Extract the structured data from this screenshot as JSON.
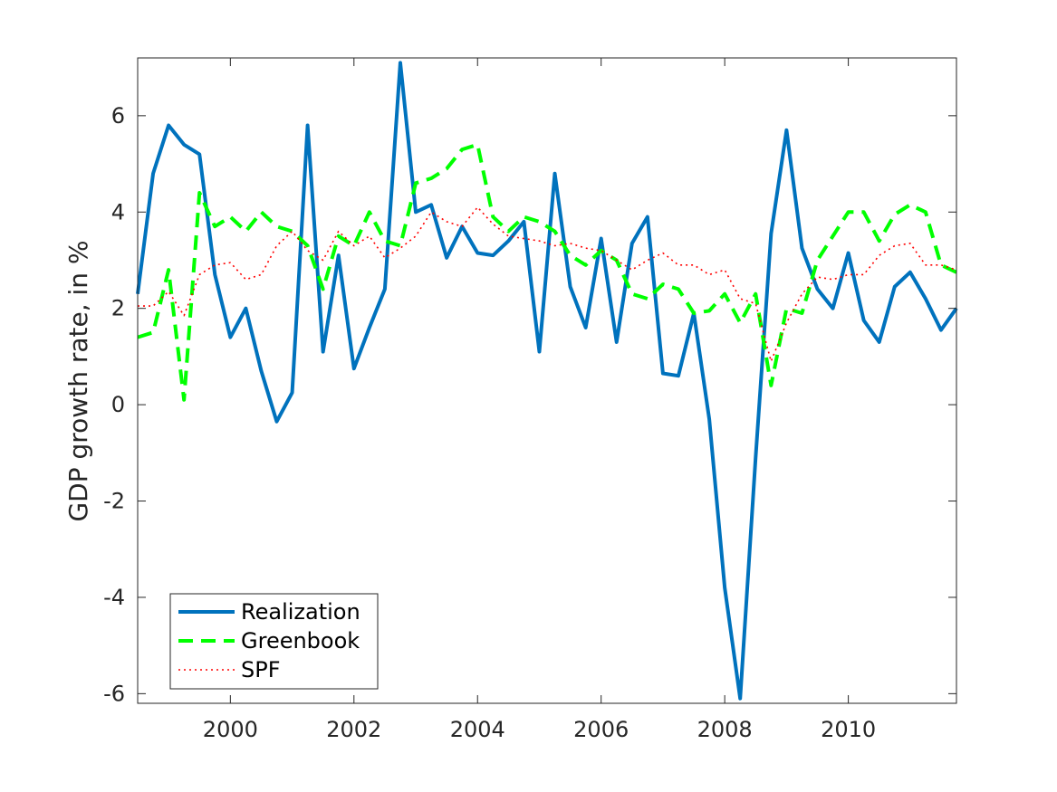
{
  "chart_data": {
    "type": "line",
    "title": "",
    "xlabel": "",
    "ylabel": "GDP growth rate, in %",
    "xlim": [
      1998.5,
      2011.75
    ],
    "ylim": [
      -6.2,
      7.2
    ],
    "xticks": [
      2000,
      2002,
      2004,
      2006,
      2008,
      2010
    ],
    "xtick_labels": [
      "2000",
      "2002",
      "2004",
      "2006",
      "2008",
      "2010"
    ],
    "yticks": [
      -6,
      -4,
      -2,
      0,
      2,
      4,
      6
    ],
    "ytick_labels": [
      "-6",
      "-4",
      "-2",
      "0",
      "2",
      "4",
      "6"
    ],
    "grid": false,
    "legend_position": "bottom-left",
    "x": [
      1998.5,
      1998.75,
      1999.0,
      1999.25,
      1999.5,
      1999.75,
      2000.0,
      2000.25,
      2000.5,
      2000.75,
      2001.0,
      2001.25,
      2001.5,
      2001.75,
      2002.0,
      2002.25,
      2002.5,
      2002.75,
      2003.0,
      2003.25,
      2003.5,
      2003.75,
      2004.0,
      2004.25,
      2004.5,
      2004.75,
      2005.0,
      2005.25,
      2005.5,
      2005.75,
      2006.0,
      2006.25,
      2006.5,
      2006.75,
      2007.0,
      2007.25,
      2007.5,
      2007.75,
      2008.0,
      2008.25,
      2008.5,
      2008.75,
      2009.0,
      2009.25,
      2009.5,
      2009.75,
      2010.0,
      2010.25,
      2010.5,
      2010.75,
      2011.0,
      2011.25,
      2011.5,
      2011.75
    ],
    "series": [
      {
        "name": "Realization",
        "color": "#0072bd",
        "style": "solid",
        "values": [
          2.3,
          4.8,
          5.8,
          5.4,
          5.2,
          2.7,
          1.4,
          2.0,
          0.7,
          -0.35,
          0.25,
          5.8,
          1.1,
          3.1,
          0.75,
          1.6,
          2.4,
          7.1,
          4.0,
          4.15,
          3.05,
          3.7,
          3.15,
          3.1,
          3.4,
          3.8,
          1.1,
          4.8,
          2.45,
          1.6,
          3.45,
          1.3,
          3.35,
          3.9,
          0.65,
          0.6,
          1.9,
          -0.3,
          -3.8,
          -6.1,
          -1.1,
          3.55,
          5.7,
          3.25,
          2.4,
          2.0,
          3.15,
          1.75,
          1.3,
          2.45,
          2.75,
          2.2,
          1.55,
          2.0
        ]
      },
      {
        "name": "Greenbook",
        "color": "#00ff00",
        "style": "dashed",
        "values": [
          1.4,
          1.5,
          2.8,
          0.1,
          4.4,
          3.7,
          3.9,
          3.6,
          4.0,
          3.7,
          3.6,
          3.3,
          2.4,
          3.5,
          3.3,
          4.0,
          3.4,
          3.3,
          4.6,
          4.7,
          4.9,
          5.3,
          5.4,
          3.9,
          3.6,
          3.9,
          3.8,
          3.6,
          3.1,
          2.9,
          3.2,
          3.0,
          2.3,
          2.2,
          2.5,
          2.4,
          1.9,
          1.95,
          2.3,
          1.7,
          2.3,
          0.4,
          2.0,
          1.9,
          3.0,
          3.5,
          4.0,
          4.0,
          3.4,
          3.95,
          4.15,
          4.0,
          2.9,
          2.75
        ]
      },
      {
        "name": "SPF",
        "color": "#ff0000",
        "style": "dotted",
        "values": [
          2.05,
          2.05,
          2.35,
          1.85,
          2.7,
          2.9,
          2.95,
          2.6,
          2.7,
          3.3,
          3.6,
          3.2,
          3.0,
          3.6,
          3.3,
          3.5,
          3.05,
          3.25,
          3.5,
          4.0,
          3.8,
          3.7,
          4.1,
          3.75,
          3.5,
          3.45,
          3.4,
          3.3,
          3.35,
          3.25,
          3.2,
          3.0,
          2.8,
          3.0,
          3.15,
          2.9,
          2.9,
          2.7,
          2.8,
          2.2,
          2.1,
          0.9,
          1.7,
          2.3,
          2.65,
          2.6,
          2.7,
          2.7,
          3.1,
          3.3,
          3.35,
          2.9,
          2.9,
          2.8
        ]
      }
    ]
  }
}
